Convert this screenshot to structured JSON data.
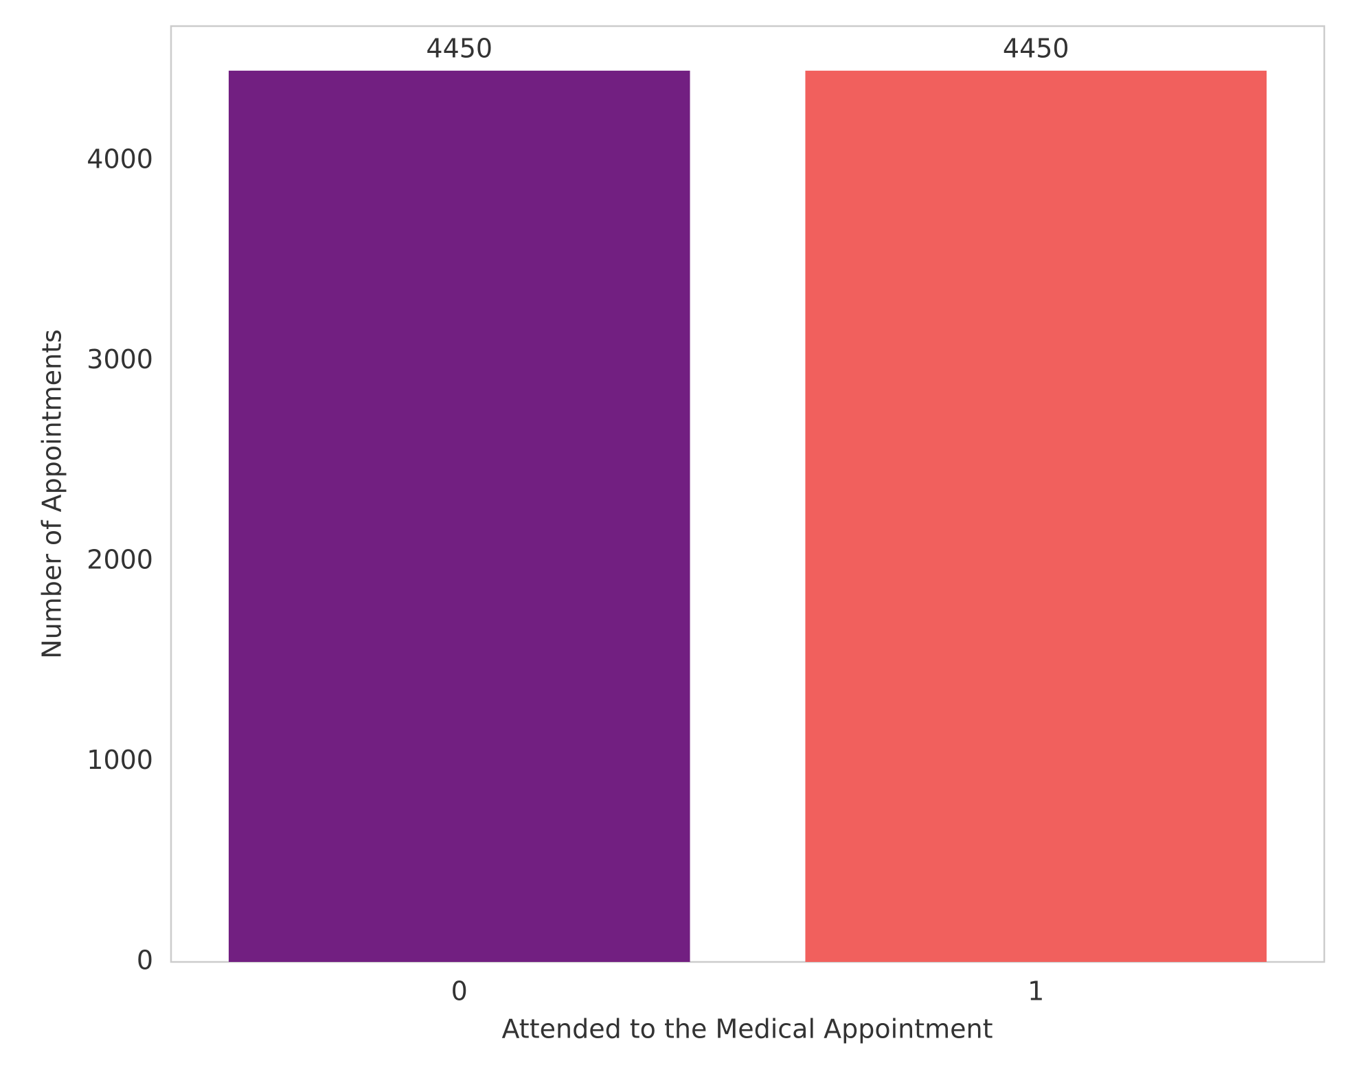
{
  "chart_data": {
    "type": "bar",
    "x_label": "Attended to the Medical Appointment",
    "y_label": "Number of Appointments",
    "categories": [
      "0",
      "1"
    ],
    "values": [
      4450,
      4450
    ],
    "colors": [
      "#721f81",
      "#f1605d"
    ],
    "ylim": [
      0,
      4672.5
    ],
    "yticks": [
      0,
      1000,
      2000,
      3000,
      4000
    ],
    "grid": false,
    "show_value_labels": true
  }
}
